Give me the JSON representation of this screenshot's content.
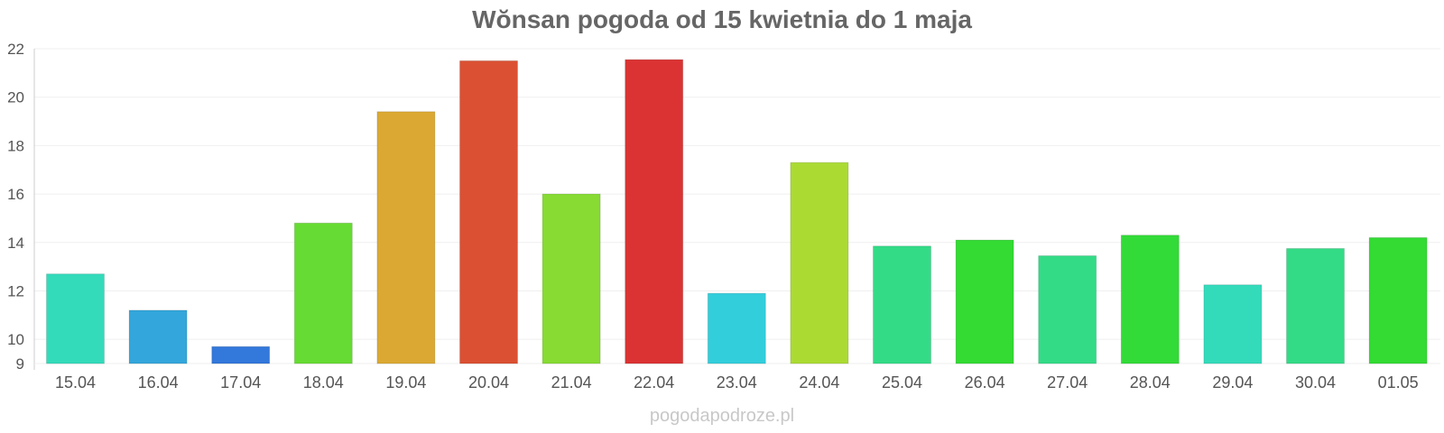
{
  "chart_data": {
    "type": "bar",
    "title": "Wŏnsan pogoda od 15 kwietnia do 1 maja",
    "xlabel": "",
    "ylabel": "",
    "categories": [
      "15.04",
      "16.04",
      "17.04",
      "18.04",
      "19.04",
      "20.04",
      "21.04",
      "22.04",
      "23.04",
      "24.04",
      "25.04",
      "26.04",
      "27.04",
      "28.04",
      "29.04",
      "30.04",
      "01.05"
    ],
    "values": [
      12.7,
      11.2,
      9.7,
      14.8,
      19.4,
      21.5,
      16.0,
      21.55,
      11.9,
      17.3,
      13.85,
      14.1,
      13.45,
      14.3,
      12.25,
      13.75,
      14.2
    ],
    "colors": [
      "#33dbbb",
      "#33a6db",
      "#3378db",
      "#66db33",
      "#dba933",
      "#db5033",
      "#87db33",
      "#db3333",
      "#33cedb",
      "#abdb33",
      "#33db87",
      "#33db33",
      "#33db87",
      "#33db38",
      "#33dbbb",
      "#33db87",
      "#33db33"
    ],
    "yticks": [
      9,
      10,
      12,
      14,
      16,
      18,
      20,
      22
    ],
    "ylim": [
      9,
      22
    ],
    "grid": true,
    "legend": "none"
  },
  "watermark": "pogodapodroze.pl"
}
